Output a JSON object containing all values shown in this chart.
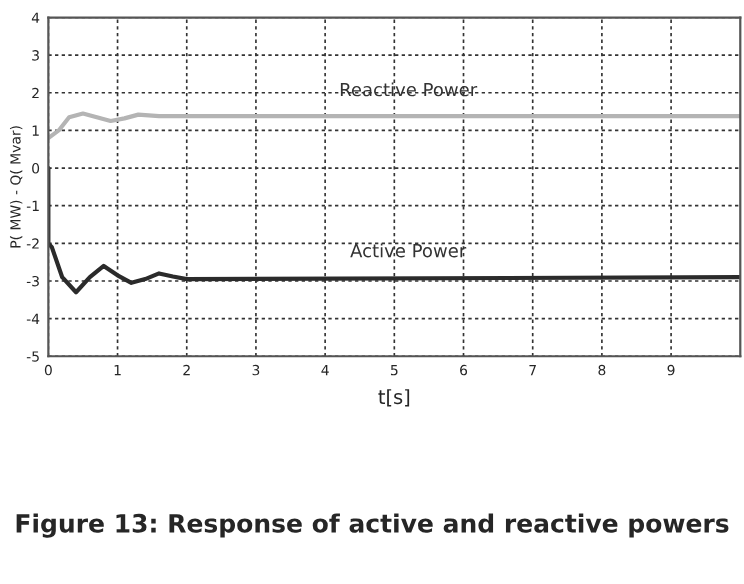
{
  "chart_data": {
    "type": "line",
    "xlabel": "t[s]",
    "ylabel": "P( MW) - Q( Mvar)",
    "xlim": [
      0,
      10
    ],
    "ylim": [
      -5,
      4
    ],
    "xticks": [
      0,
      1,
      2,
      3,
      4,
      5,
      6,
      7,
      8,
      9
    ],
    "yticks": [
      -5,
      -4,
      -3,
      -2,
      -1,
      0,
      1,
      2,
      3,
      4
    ],
    "grid": true,
    "line_style": "solid",
    "marker": "none",
    "legend": false,
    "series": [
      {
        "name": "Reactive Power",
        "color": "#b4b4b4",
        "x": [
          0,
          0.15,
          0.3,
          0.5,
          0.7,
          0.9,
          1.1,
          1.3,
          1.6,
          2,
          10
        ],
        "values": [
          0.8,
          1.0,
          1.35,
          1.45,
          1.35,
          1.25,
          1.32,
          1.42,
          1.38,
          1.38,
          1.38
        ]
      },
      {
        "name": "Active Power",
        "color": "#2b2b2b",
        "x": [
          0,
          0,
          0.05,
          0.2,
          0.4,
          0.6,
          0.8,
          1.0,
          1.2,
          1.4,
          1.6,
          1.8,
          2,
          10
        ],
        "values": [
          0,
          -2,
          -2.1,
          -2.9,
          -3.3,
          -2.9,
          -2.6,
          -2.85,
          -3.05,
          -2.95,
          -2.8,
          -2.88,
          -2.95,
          -2.9
        ]
      }
    ],
    "annotations": [
      "Figure 13: Response of active and reactive powers"
    ]
  }
}
